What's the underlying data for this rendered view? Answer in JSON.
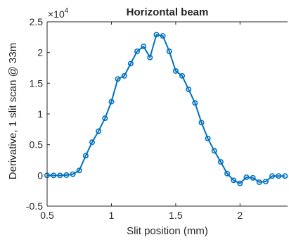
{
  "chart_data": {
    "type": "line",
    "title": "Horizontal beam",
    "xlabel": "Slit position (mm)",
    "ylabel": "Derivative, 1 slit scan @ 33m",
    "xlim": [
      0.5,
      2.37
    ],
    "ylim": [
      -5000,
      25000
    ],
    "x_ticks": [
      "0.5",
      "1",
      "1.5",
      "2"
    ],
    "x_tick_values": [
      0.5,
      1,
      1.5,
      2
    ],
    "y_ticks": [
      "-0.5",
      "0",
      "0.5",
      "1",
      "1.5",
      "2",
      "2.5"
    ],
    "y_tick_values": [
      -5000,
      0,
      5000,
      10000,
      15000,
      20000,
      25000
    ],
    "y_exponent": {
      "base": "×10",
      "power": "4"
    },
    "grid": false,
    "marker": "circle",
    "line_color": "#0072BD",
    "series": [
      {
        "x": [
          0.5,
          0.55,
          0.6,
          0.65,
          0.7,
          0.75,
          0.8,
          0.85,
          0.9,
          0.95,
          1.0,
          1.05,
          1.1,
          1.15,
          1.2,
          1.25,
          1.3,
          1.35,
          1.4,
          1.45,
          1.5,
          1.55,
          1.6,
          1.65,
          1.7,
          1.75,
          1.8,
          1.85,
          1.9,
          1.95,
          2.0,
          2.05,
          2.1,
          2.15,
          2.2,
          2.25,
          2.3,
          2.35
        ],
        "y": [
          0,
          0,
          0,
          50,
          200,
          800,
          3200,
          5400,
          7200,
          9300,
          12000,
          15700,
          16200,
          18200,
          20200,
          21000,
          19200,
          22900,
          22700,
          20200,
          17000,
          16200,
          14000,
          11800,
          8600,
          6000,
          4000,
          2200,
          300,
          -800,
          -1300,
          -300,
          -400,
          -1100,
          -1000,
          -100,
          -100,
          -100
        ]
      }
    ]
  }
}
